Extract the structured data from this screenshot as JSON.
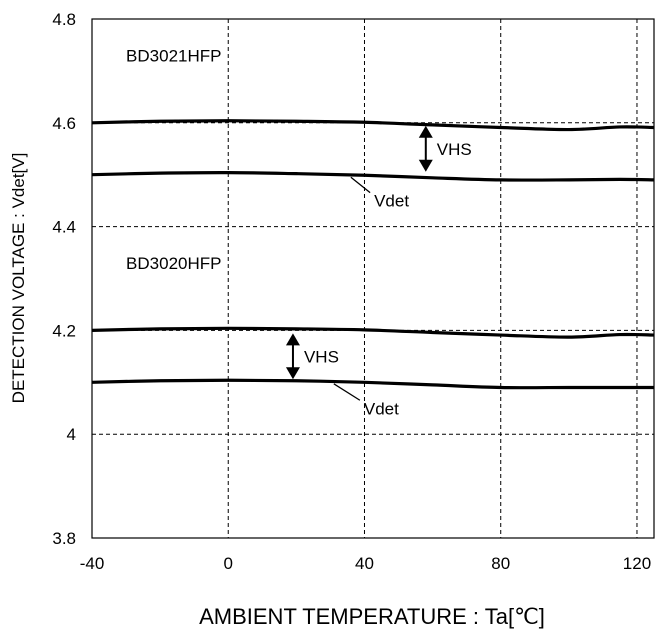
{
  "chart_data": {
    "type": "line",
    "title": "",
    "xlabel": "AMBIENT TEMPERATURE : Ta[℃]",
    "ylabel": "DETECTION VOLTAGE : Vdet[V]",
    "xlim": [
      -40,
      125
    ],
    "ylim": [
      3.8,
      4.8
    ],
    "x_ticks": [
      -40,
      0,
      40,
      80,
      120
    ],
    "x_tick_labels": [
      "-40",
      "0",
      "40",
      "80",
      "120"
    ],
    "y_ticks": [
      3.8,
      4.0,
      4.2,
      4.4,
      4.6,
      4.8
    ],
    "y_tick_labels": [
      "3.8",
      "4",
      "4.2",
      "4.4",
      "4.6",
      "4.8"
    ],
    "grid": true,
    "legend": "none",
    "series": [
      {
        "x": [
          -40,
          -20,
          0,
          20,
          40,
          60,
          80,
          100,
          115,
          125
        ],
        "y": [
          4.6,
          4.603,
          4.604,
          4.603,
          4.601,
          4.596,
          4.591,
          4.587,
          4.592,
          4.591
        ]
      },
      {
        "x": [
          -40,
          -20,
          0,
          20,
          40,
          60,
          80,
          100,
          115,
          125
        ],
        "y": [
          4.5,
          4.503,
          4.504,
          4.502,
          4.499,
          4.494,
          4.49,
          4.49,
          4.491,
          4.49
        ]
      },
      {
        "x": [
          -40,
          -20,
          0,
          20,
          40,
          60,
          80,
          100,
          115,
          125
        ],
        "y": [
          4.2,
          4.203,
          4.204,
          4.203,
          4.201,
          4.196,
          4.191,
          4.187,
          4.192,
          4.191
        ]
      },
      {
        "x": [
          -40,
          -20,
          0,
          20,
          40,
          60,
          80,
          100,
          115,
          125
        ],
        "y": [
          4.1,
          4.103,
          4.104,
          4.103,
          4.1,
          4.095,
          4.09,
          4.09,
          4.09,
          4.09
        ]
      }
    ],
    "annotations": {
      "groups": [
        {
          "label": "BD3021HFP",
          "at": [
            -30,
            4.73
          ]
        },
        {
          "label": "BD3020HFP",
          "at": [
            -30,
            4.33
          ]
        }
      ],
      "hysteresis": [
        {
          "label": "VHS",
          "x": 58,
          "from": 4.5,
          "to": 4.6
        },
        {
          "label": "VHS",
          "x": 19,
          "from": 4.1,
          "to": 4.2
        }
      ],
      "vdet_labels": [
        {
          "label": "Vdet",
          "target": [
            36,
            4.499
          ],
          "text_at": [
            44,
            4.45
          ]
        },
        {
          "label": "Vdet",
          "target": [
            31,
            4.101
          ],
          "text_at": [
            41,
            4.05
          ]
        }
      ]
    }
  }
}
